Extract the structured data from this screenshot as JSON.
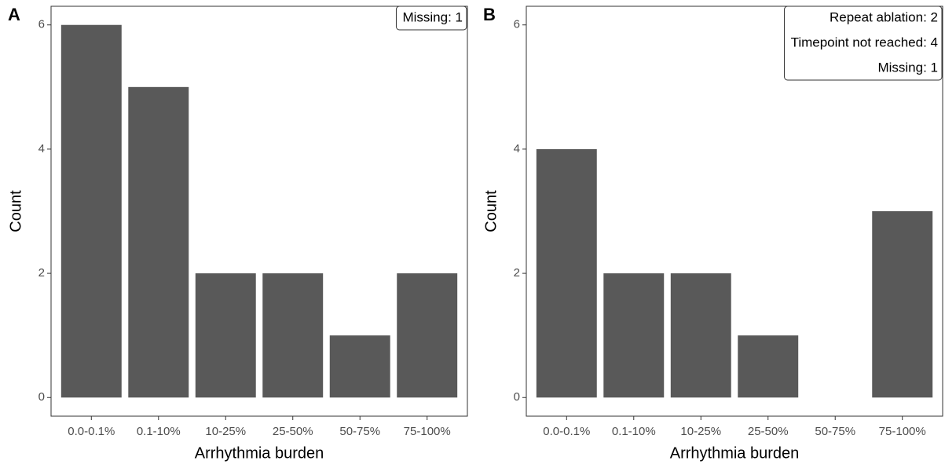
{
  "chart_data": [
    {
      "type": "bar",
      "panel_label": "A",
      "x_label": "Arrhythmia burden",
      "y_label": "Count",
      "categories": [
        "0.0-0.1%",
        "0.1-10%",
        "10-25%",
        "25-50%",
        "50-75%",
        "75-100%"
      ],
      "values": [
        6,
        5,
        2,
        2,
        1,
        2
      ],
      "color": "#595959",
      "ylim": [
        -0.3,
        6.3
      ],
      "yticks": [
        0,
        2,
        4,
        6
      ],
      "annotations": [
        "Missing: 1"
      ]
    },
    {
      "type": "bar",
      "panel_label": "B",
      "x_label": "Arrhythmia burden",
      "y_label": "Count",
      "categories": [
        "0.0-0.1%",
        "0.1-10%",
        "10-25%",
        "25-50%",
        "50-75%",
        "75-100%"
      ],
      "values": [
        4,
        2,
        2,
        1,
        0,
        3
      ],
      "color": "#595959",
      "ylim": [
        -0.3,
        6.3
      ],
      "yticks": [
        0,
        2,
        4,
        6
      ],
      "annotations": [
        "Repeat ablation: 2",
        "Timepoint not reached: 4",
        "Missing: 1"
      ]
    }
  ]
}
